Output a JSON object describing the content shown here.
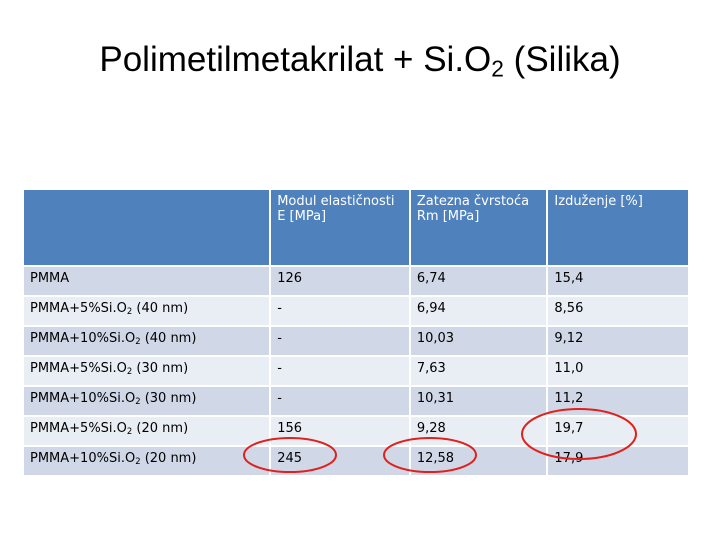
{
  "title": {
    "text": "Polimetilmetakrilat + Si.O",
    "sub": "2",
    "rest": " (Silika)"
  },
  "table": {
    "header": [
      "Modul elastičnosti E [MPa]",
      "Zatezna čvrstoća Rm [MPa]",
      "Izduženje [%]"
    ],
    "rows": [
      {
        "label": {
          "text": "PMMA"
        },
        "cells": [
          "126",
          "6,74",
          "15,4"
        ]
      },
      {
        "label": {
          "text": "PMMA+5%Si.O",
          "sub": "2",
          "rest": " (40 nm)"
        },
        "cells": [
          "-",
          "6,94",
          "8,56"
        ]
      },
      {
        "label": {
          "text": "PMMA+10%Si.O",
          "sub": "2",
          "rest": " (40 nm)"
        },
        "cells": [
          "-",
          "10,03",
          "9,12"
        ]
      },
      {
        "label": {
          "text": "PMMA+5%Si.O",
          "sub": "2",
          "rest": " (30 nm)"
        },
        "cells": [
          "-",
          "7,63",
          "11,0"
        ]
      },
      {
        "label": {
          "text": "PMMA+10%Si.O",
          "sub": "2",
          "rest": " (30 nm)"
        },
        "cells": [
          "-",
          "10,31",
          "11,2"
        ]
      },
      {
        "label": {
          "text": "PMMA+5%Si.O",
          "sub": "2",
          "rest": " (20 nm)"
        },
        "cells": [
          "156",
          "9,28",
          "19,7"
        ]
      },
      {
        "label": {
          "text": "PMMA+10%Si.O",
          "sub": "2",
          "rest": " (20 nm)"
        },
        "cells": [
          "245",
          "12,58",
          "17,9"
        ]
      }
    ]
  }
}
